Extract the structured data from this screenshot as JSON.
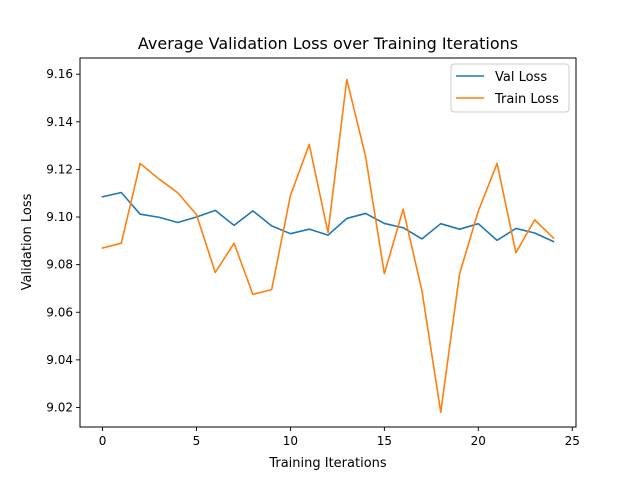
{
  "chart_data": {
    "type": "line",
    "title": "Average Validation Loss over Training Iterations",
    "xlabel": "Training Iterations",
    "ylabel": "Validation Loss",
    "xlim": [
      -1.2,
      25.2
    ],
    "ylim": [
      9.0118,
      9.1668
    ],
    "xticks": [
      0,
      5,
      10,
      15,
      20,
      25
    ],
    "yticks": [
      9.02,
      9.04,
      9.06,
      9.08,
      9.1,
      9.12,
      9.14,
      9.16
    ],
    "grid": false,
    "legend_position": "top-right",
    "x": [
      0,
      1,
      2,
      3,
      4,
      5,
      6,
      7,
      8,
      9,
      10,
      11,
      12,
      13,
      14,
      15,
      16,
      17,
      18,
      19,
      20,
      21,
      22,
      23,
      24
    ],
    "series": [
      {
        "name": "Val Loss",
        "color": "#1f77b4",
        "values": [
          9.1085,
          9.1103,
          9.1012,
          9.0999,
          9.0977,
          9.1,
          9.1028,
          9.0965,
          9.1026,
          9.0963,
          9.093,
          9.0949,
          9.0924,
          9.0994,
          9.1015,
          9.0973,
          9.0955,
          9.0908,
          9.0972,
          9.0949,
          9.0972,
          9.0902,
          9.0952,
          9.0933,
          9.0897
        ]
      },
      {
        "name": "Train Loss",
        "color": "#ff7f0e",
        "values": [
          9.087,
          9.089,
          9.1225,
          9.116,
          9.1102,
          9.101,
          9.0767,
          9.089,
          9.0675,
          9.0695,
          9.109,
          9.1305,
          9.0935,
          9.1578,
          9.1255,
          9.0762,
          9.1033,
          9.069,
          9.018,
          9.076,
          9.1025,
          9.1225,
          9.085,
          9.0988,
          9.0912
        ]
      }
    ]
  }
}
